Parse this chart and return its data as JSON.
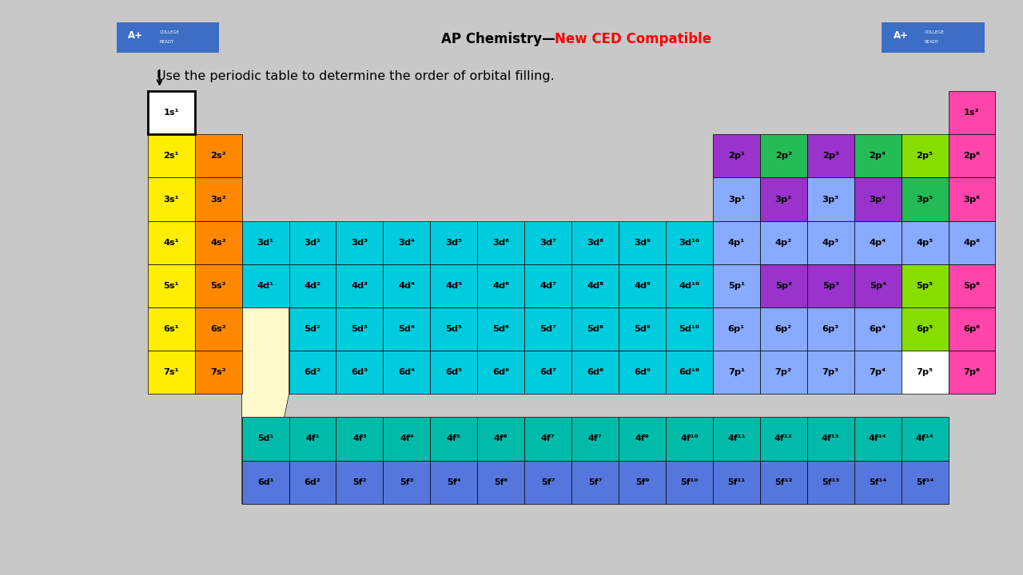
{
  "bg_color": "#c8c8c8",
  "title_black": "AP Chemistry—",
  "title_red": "New CED Compatible",
  "subtitle": "Use the periodic table to determine the order of orbital filling.",
  "C": {
    "yellow": "#FFEE00",
    "orange": "#FF8800",
    "pink": "#FF44AA",
    "purple": "#9933CC",
    "light_blue": "#88AAFF",
    "green": "#22BB55",
    "lime": "#88DD00",
    "cyan": "#00CCDD",
    "teal": "#00BBBB",
    "f_teal": "#00BBAA",
    "f_blue": "#5577DD",
    "white": "#FFFFFF",
    "cream": "#FFFACC"
  },
  "main_cells": [
    [
      0,
      0,
      "1s¹",
      "white"
    ],
    [
      0,
      17,
      "1s²",
      "pink"
    ],
    [
      1,
      0,
      "2s¹",
      "yellow"
    ],
    [
      1,
      1,
      "2s²",
      "orange"
    ],
    [
      1,
      12,
      "2p¹",
      "purple"
    ],
    [
      1,
      13,
      "2p²",
      "green"
    ],
    [
      1,
      14,
      "2p³",
      "purple"
    ],
    [
      1,
      15,
      "2p⁴",
      "green"
    ],
    [
      1,
      16,
      "2p⁵",
      "lime"
    ],
    [
      1,
      17,
      "2p⁶",
      "pink"
    ],
    [
      2,
      0,
      "3s¹",
      "yellow"
    ],
    [
      2,
      1,
      "3s²",
      "orange"
    ],
    [
      2,
      12,
      "3p¹",
      "light_blue"
    ],
    [
      2,
      13,
      "3p²",
      "purple"
    ],
    [
      2,
      14,
      "3p³",
      "light_blue"
    ],
    [
      2,
      15,
      "3p⁴",
      "purple"
    ],
    [
      2,
      16,
      "3p⁵",
      "green"
    ],
    [
      2,
      17,
      "3p⁶",
      "pink"
    ],
    [
      3,
      0,
      "4s¹",
      "yellow"
    ],
    [
      3,
      1,
      "4s²",
      "orange"
    ],
    [
      3,
      2,
      "3d¹",
      "cyan"
    ],
    [
      3,
      3,
      "3d²",
      "cyan"
    ],
    [
      3,
      4,
      "3d³",
      "cyan"
    ],
    [
      3,
      5,
      "3d⁴",
      "cyan"
    ],
    [
      3,
      6,
      "3d⁵",
      "cyan"
    ],
    [
      3,
      7,
      "3d⁶",
      "cyan"
    ],
    [
      3,
      8,
      "3d⁷",
      "cyan"
    ],
    [
      3,
      9,
      "3d⁸",
      "cyan"
    ],
    [
      3,
      10,
      "3d⁹",
      "cyan"
    ],
    [
      3,
      11,
      "3d¹⁰",
      "cyan"
    ],
    [
      3,
      12,
      "4p¹",
      "light_blue"
    ],
    [
      3,
      13,
      "4p²",
      "light_blue"
    ],
    [
      3,
      14,
      "4p³",
      "light_blue"
    ],
    [
      3,
      15,
      "4p⁴",
      "light_blue"
    ],
    [
      3,
      16,
      "4p⁵",
      "light_blue"
    ],
    [
      3,
      17,
      "4p⁶",
      "light_blue"
    ],
    [
      4,
      0,
      "5s¹",
      "yellow"
    ],
    [
      4,
      1,
      "5s²",
      "orange"
    ],
    [
      4,
      2,
      "4d¹",
      "cyan"
    ],
    [
      4,
      3,
      "4d²",
      "cyan"
    ],
    [
      4,
      4,
      "4d³",
      "cyan"
    ],
    [
      4,
      5,
      "4d⁴",
      "cyan"
    ],
    [
      4,
      6,
      "4d⁵",
      "cyan"
    ],
    [
      4,
      7,
      "4d⁶",
      "cyan"
    ],
    [
      4,
      8,
      "4d⁷",
      "cyan"
    ],
    [
      4,
      9,
      "4d⁸",
      "cyan"
    ],
    [
      4,
      10,
      "4d⁹",
      "cyan"
    ],
    [
      4,
      11,
      "4d¹⁰",
      "cyan"
    ],
    [
      4,
      12,
      "5p¹",
      "light_blue"
    ],
    [
      4,
      13,
      "5p²",
      "purple"
    ],
    [
      4,
      14,
      "5p³",
      "purple"
    ],
    [
      4,
      15,
      "5p⁴",
      "purple"
    ],
    [
      4,
      16,
      "5p⁵",
      "lime"
    ],
    [
      4,
      17,
      "5p⁶",
      "pink"
    ],
    [
      5,
      0,
      "6s¹",
      "yellow"
    ],
    [
      5,
      1,
      "6s²",
      "orange"
    ],
    [
      5,
      3,
      "5d²",
      "cyan"
    ],
    [
      5,
      4,
      "5d³",
      "cyan"
    ],
    [
      5,
      5,
      "5d⁴",
      "cyan"
    ],
    [
      5,
      6,
      "5d⁵",
      "cyan"
    ],
    [
      5,
      7,
      "5d⁶",
      "cyan"
    ],
    [
      5,
      8,
      "5d⁷",
      "cyan"
    ],
    [
      5,
      9,
      "5d⁸",
      "cyan"
    ],
    [
      5,
      10,
      "5d⁹",
      "cyan"
    ],
    [
      5,
      11,
      "5d¹⁰",
      "cyan"
    ],
    [
      5,
      12,
      "6p¹",
      "light_blue"
    ],
    [
      5,
      13,
      "6p²",
      "light_blue"
    ],
    [
      5,
      14,
      "6p³",
      "light_blue"
    ],
    [
      5,
      15,
      "6p⁴",
      "light_blue"
    ],
    [
      5,
      16,
      "6p⁵",
      "lime"
    ],
    [
      5,
      17,
      "6p⁶",
      "pink"
    ],
    [
      6,
      0,
      "7s¹",
      "yellow"
    ],
    [
      6,
      1,
      "7s²",
      "orange"
    ],
    [
      6,
      3,
      "6d²",
      "cyan"
    ],
    [
      6,
      4,
      "6d³",
      "cyan"
    ],
    [
      6,
      5,
      "6d⁴",
      "cyan"
    ],
    [
      6,
      6,
      "6d⁵",
      "cyan"
    ],
    [
      6,
      7,
      "6d⁶",
      "cyan"
    ],
    [
      6,
      8,
      "6d⁷",
      "cyan"
    ],
    [
      6,
      9,
      "6d⁸",
      "cyan"
    ],
    [
      6,
      10,
      "6d⁹",
      "cyan"
    ],
    [
      6,
      11,
      "6d¹⁰",
      "cyan"
    ],
    [
      6,
      12,
      "7p¹",
      "light_blue"
    ],
    [
      6,
      13,
      "7p²",
      "light_blue"
    ],
    [
      6,
      14,
      "7p³",
      "light_blue"
    ],
    [
      6,
      15,
      "7p⁴",
      "light_blue"
    ],
    [
      6,
      16,
      "7p⁵",
      "white"
    ],
    [
      6,
      17,
      "7p⁶",
      "pink"
    ]
  ],
  "f_row1": [
    "5d¹",
    "4f¹",
    "4f³",
    "4f⁴",
    "4f⁵",
    "4f⁶",
    "4f⁷",
    "4f⁷",
    "4f⁹",
    "4f¹⁰",
    "4f¹¹",
    "4f¹²",
    "4f¹³",
    "4f¹⁴",
    "4f¹⁴"
  ],
  "f_row2": [
    "6d¹",
    "6d²",
    "5f²",
    "5f³",
    "5f⁴",
    "5f⁶",
    "5f⁷",
    "5f⁷",
    "5f⁹",
    "5f¹⁰",
    "5f¹¹",
    "5f¹²",
    "5f¹³",
    "5f¹⁴",
    "5f¹⁴"
  ]
}
